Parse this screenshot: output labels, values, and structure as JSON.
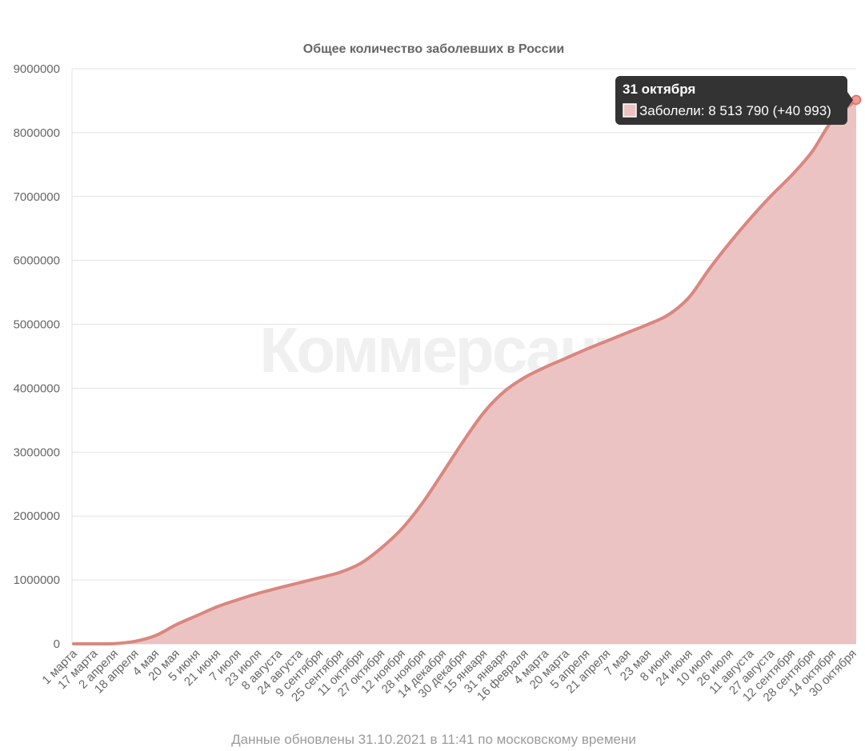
{
  "chart_data": {
    "type": "area",
    "title": "Общее количество заболевших в России",
    "xlabel": "",
    "ylabel": "",
    "ylim": [
      0,
      9000000
    ],
    "yticks": [
      0,
      1000000,
      2000000,
      3000000,
      4000000,
      5000000,
      6000000,
      7000000,
      8000000,
      9000000
    ],
    "ytick_labels": [
      "0",
      "1000000",
      "2000000",
      "3000000",
      "4000000",
      "5000000",
      "6000000",
      "7000000",
      "8000000",
      "9000000"
    ],
    "grid": true,
    "color": "#d9877f",
    "fill_color": "#ebc3c2",
    "categories": [
      "1 марта",
      "17 марта",
      "2 апреля",
      "18 апреля",
      "4 мая",
      "20 мая",
      "5 июня",
      "21 июня",
      "7 июля",
      "23 июля",
      "8 августа",
      "24 августа",
      "9 сентября",
      "25 сентября",
      "11 октября",
      "27 октября",
      "12 ноября",
      "28 ноября",
      "14 декабря",
      "30 декабря",
      "15 января",
      "31 января",
      "16 февраля",
      "4 марта",
      "20 марта",
      "5 апреля",
      "21 апреля",
      "7 мая",
      "23 мая",
      "8 июня",
      "24 июня",
      "10 июля",
      "26 июля",
      "11 августа",
      "27 августа",
      "12 сентября",
      "28 сентября",
      "14 октября",
      "30 октября"
    ],
    "series": [
      {
        "name": "Заболели",
        "values": [
          0,
          100,
          3500,
          40000,
          130000,
          300000,
          440000,
          580000,
          690000,
          790000,
          875000,
          955000,
          1035000,
          1120000,
          1260000,
          1500000,
          1800000,
          2200000,
          2680000,
          3170000,
          3620000,
          3950000,
          4170000,
          4330000,
          4470000,
          4610000,
          4740000,
          4870000,
          5000000,
          5150000,
          5420000,
          5870000,
          6280000,
          6660000,
          7010000,
          7330000,
          7700000,
          8200000,
          8470000
        ]
      }
    ],
    "highlight": {
      "date": "31 октября",
      "label": "Заболели: 8 513 790 (+40 993)",
      "value": 8513790
    },
    "watermark": "Коммерсантъ",
    "footnote": "Данные обновлены 31.10.2021 в 11:41 по московскому времени"
  }
}
